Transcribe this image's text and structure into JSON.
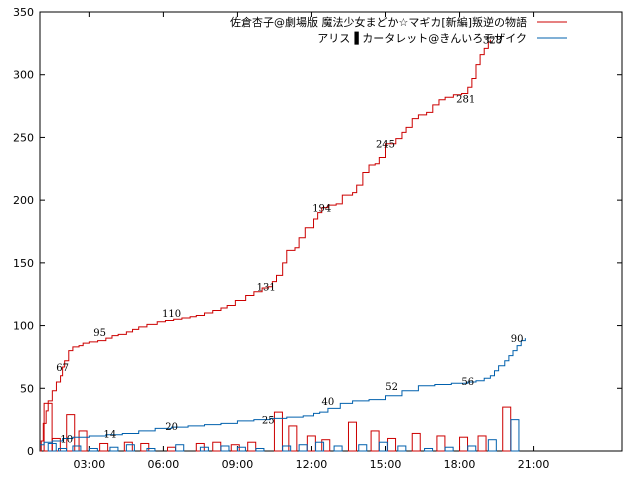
{
  "chart_data": {
    "type": "line",
    "x_range": [
      0,
      1415
    ],
    "ylim": [
      0,
      350
    ],
    "yticks": [
      0,
      50,
      100,
      150,
      200,
      250,
      300,
      350
    ],
    "xticks": [
      {
        "value": 120,
        "label": "03:00"
      },
      {
        "value": 300,
        "label": "06:00"
      },
      {
        "value": 480,
        "label": "09:00"
      },
      {
        "value": 660,
        "label": "12:00"
      },
      {
        "value": 840,
        "label": "15:00"
      },
      {
        "value": 1020,
        "label": "18:00"
      },
      {
        "value": 1200,
        "label": "21:00"
      }
    ],
    "series": [
      {
        "name": "佐倉杏子@劇場版 魔法少女まどか☆マギカ[新編]叛逆の物語",
        "color": "#cc0000",
        "points": [
          [
            0,
            0
          ],
          [
            3,
            8
          ],
          [
            8,
            22
          ],
          [
            15,
            32
          ],
          [
            20,
            40
          ],
          [
            30,
            48
          ],
          [
            40,
            55
          ],
          [
            50,
            60
          ],
          [
            55,
            67
          ],
          [
            60,
            72
          ],
          [
            70,
            80
          ],
          [
            80,
            83
          ],
          [
            95,
            84
          ],
          [
            105,
            86
          ],
          [
            120,
            87
          ],
          [
            140,
            88
          ],
          [
            160,
            90
          ],
          [
            175,
            92
          ],
          [
            190,
            93
          ],
          [
            210,
            95
          ],
          [
            225,
            97
          ],
          [
            240,
            99
          ],
          [
            260,
            101
          ],
          [
            285,
            103
          ],
          [
            305,
            104
          ],
          [
            325,
            105
          ],
          [
            345,
            106
          ],
          [
            365,
            107
          ],
          [
            380,
            108
          ],
          [
            400,
            110
          ],
          [
            420,
            112
          ],
          [
            440,
            114
          ],
          [
            455,
            116
          ],
          [
            475,
            120
          ],
          [
            500,
            124
          ],
          [
            520,
            127
          ],
          [
            540,
            130
          ],
          [
            555,
            131
          ],
          [
            565,
            135
          ],
          [
            575,
            140
          ],
          [
            590,
            150
          ],
          [
            600,
            160
          ],
          [
            620,
            162
          ],
          [
            630,
            170
          ],
          [
            645,
            178
          ],
          [
            665,
            185
          ],
          [
            675,
            190
          ],
          [
            685,
            194
          ],
          [
            700,
            196
          ],
          [
            720,
            197
          ],
          [
            735,
            204
          ],
          [
            760,
            206
          ],
          [
            770,
            212
          ],
          [
            785,
            222
          ],
          [
            800,
            228
          ],
          [
            815,
            229
          ],
          [
            825,
            234
          ],
          [
            840,
            245
          ],
          [
            865,
            249
          ],
          [
            880,
            254
          ],
          [
            890,
            258
          ],
          [
            905,
            265
          ],
          [
            920,
            268
          ],
          [
            940,
            270
          ],
          [
            955,
            276
          ],
          [
            970,
            280
          ],
          [
            985,
            282
          ],
          [
            1005,
            284
          ],
          [
            1025,
            285
          ],
          [
            1040,
            290
          ],
          [
            1050,
            297
          ],
          [
            1060,
            308
          ],
          [
            1070,
            316
          ],
          [
            1080,
            321
          ],
          [
            1090,
            326
          ],
          [
            1095,
            328
          ]
        ]
      },
      {
        "name": "アリス▐ カータレット@きんいろモザイク",
        "color": "#0060ad",
        "points": [
          [
            0,
            5
          ],
          [
            10,
            7
          ],
          [
            30,
            8
          ],
          [
            55,
            10
          ],
          [
            80,
            11
          ],
          [
            120,
            12
          ],
          [
            160,
            13
          ],
          [
            200,
            14
          ],
          [
            240,
            16
          ],
          [
            280,
            18
          ],
          [
            320,
            19
          ],
          [
            360,
            20
          ],
          [
            400,
            21
          ],
          [
            440,
            22
          ],
          [
            480,
            24
          ],
          [
            520,
            25
          ],
          [
            560,
            26
          ],
          [
            600,
            27
          ],
          [
            640,
            28
          ],
          [
            665,
            30
          ],
          [
            680,
            31
          ],
          [
            700,
            34
          ],
          [
            730,
            38
          ],
          [
            760,
            40
          ],
          [
            800,
            41
          ],
          [
            840,
            44
          ],
          [
            880,
            48
          ],
          [
            920,
            52
          ],
          [
            960,
            53
          ],
          [
            1000,
            54
          ],
          [
            1040,
            55
          ],
          [
            1060,
            56
          ],
          [
            1080,
            58
          ],
          [
            1095,
            60
          ],
          [
            1105,
            64
          ],
          [
            1115,
            68
          ],
          [
            1130,
            72
          ],
          [
            1140,
            76
          ],
          [
            1150,
            80
          ],
          [
            1160,
            84
          ],
          [
            1170,
            88
          ],
          [
            1180,
            90
          ]
        ]
      }
    ],
    "bars_red": [
      [
        10,
        38
      ],
      [
        30,
        10
      ],
      [
        65,
        29
      ],
      [
        95,
        16
      ],
      [
        145,
        6
      ],
      [
        205,
        7
      ],
      [
        245,
        6
      ],
      [
        310,
        3
      ],
      [
        380,
        6
      ],
      [
        420,
        7
      ],
      [
        465,
        5
      ],
      [
        505,
        7
      ],
      [
        570,
        31
      ],
      [
        605,
        20
      ],
      [
        650,
        12
      ],
      [
        685,
        9
      ],
      [
        750,
        23
      ],
      [
        805,
        16
      ],
      [
        845,
        10
      ],
      [
        905,
        14
      ],
      [
        965,
        12
      ],
      [
        1020,
        11
      ],
      [
        1065,
        12
      ],
      [
        1125,
        35
      ]
    ],
    "bars_blue": [
      [
        20,
        6
      ],
      [
        45,
        2
      ],
      [
        80,
        4
      ],
      [
        120,
        2
      ],
      [
        170,
        3
      ],
      [
        210,
        5
      ],
      [
        260,
        2
      ],
      [
        330,
        5
      ],
      [
        390,
        3
      ],
      [
        440,
        4
      ],
      [
        480,
        3
      ],
      [
        525,
        2
      ],
      [
        590,
        4
      ],
      [
        630,
        5
      ],
      [
        670,
        7
      ],
      [
        715,
        4
      ],
      [
        775,
        5
      ],
      [
        825,
        7
      ],
      [
        870,
        4
      ],
      [
        935,
        2
      ],
      [
        985,
        3
      ],
      [
        1040,
        4
      ],
      [
        1090,
        9
      ],
      [
        1145,
        25
      ]
    ],
    "annotations": [
      {
        "x": 55,
        "y": 67,
        "text": "67"
      },
      {
        "x": 65,
        "y": 10,
        "text": "10"
      },
      {
        "x": 145,
        "y": 95,
        "text": "95"
      },
      {
        "x": 170,
        "y": 14,
        "text": "14"
      },
      {
        "x": 320,
        "y": 110,
        "text": "110"
      },
      {
        "x": 320,
        "y": 20,
        "text": "20"
      },
      {
        "x": 550,
        "y": 131,
        "text": "131"
      },
      {
        "x": 555,
        "y": 25,
        "text": "25"
      },
      {
        "x": 685,
        "y": 194,
        "text": "194"
      },
      {
        "x": 700,
        "y": 40,
        "text": "40"
      },
      {
        "x": 840,
        "y": 245,
        "text": "245"
      },
      {
        "x": 855,
        "y": 52,
        "text": "52"
      },
      {
        "x": 1035,
        "y": 281,
        "text": "281"
      },
      {
        "x": 1040,
        "y": 56,
        "text": "56"
      },
      {
        "x": 1100,
        "y": 328,
        "text": "328"
      },
      {
        "x": 1160,
        "y": 90,
        "text": "90"
      }
    ]
  }
}
